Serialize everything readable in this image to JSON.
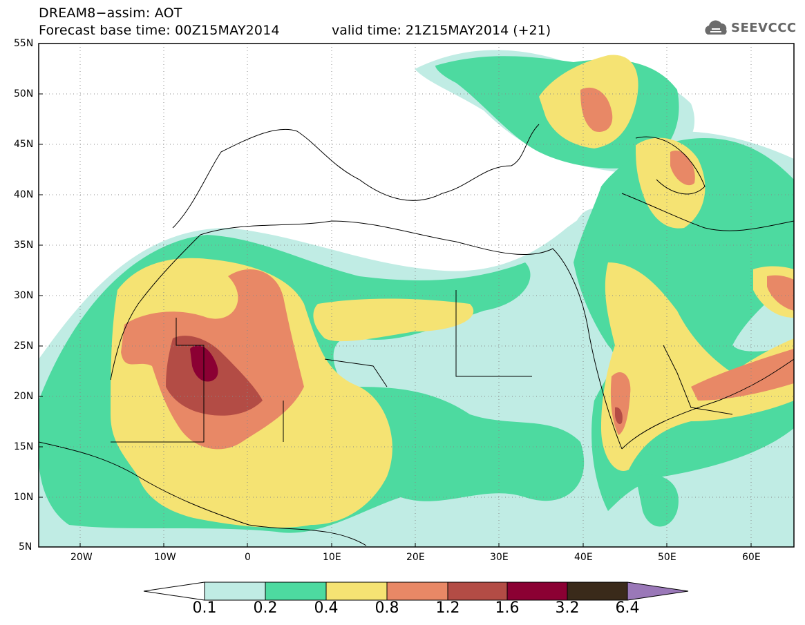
{
  "header": {
    "title_line1": "DREAM8−assim: AOT",
    "title_line2": "Forecast base time: 00Z15MAY2014",
    "valid_time": "valid time: 21Z15MAY2014 (+21)",
    "logo_text": "SEEVCCC",
    "logo_icon": "cloud-icon"
  },
  "map": {
    "extent": {
      "lon": [
        -25,
        65
      ],
      "lat": [
        5,
        55
      ]
    },
    "lat_ticks": [
      "55N",
      "50N",
      "45N",
      "40N",
      "35N",
      "30N",
      "25N",
      "20N",
      "15N",
      "10N",
      "5N"
    ],
    "lon_ticks": [
      "20W",
      "10W",
      "0",
      "10E",
      "20E",
      "30E",
      "40E",
      "50E",
      "60E"
    ],
    "grid": "dotted",
    "variable": "Aerosol Optical Thickness"
  },
  "colorbar": {
    "labels": [
      "0.1",
      "0.2",
      "0.4",
      "0.8",
      "1.2",
      "1.6",
      "3.2",
      "6.4"
    ],
    "colors": [
      "#ffffff",
      "#c0ece4",
      "#4ddaa0",
      "#f5e373",
      "#e88866",
      "#b34c45",
      "#8b0033",
      "#3a2a1a",
      "#9a78b8"
    ]
  }
}
